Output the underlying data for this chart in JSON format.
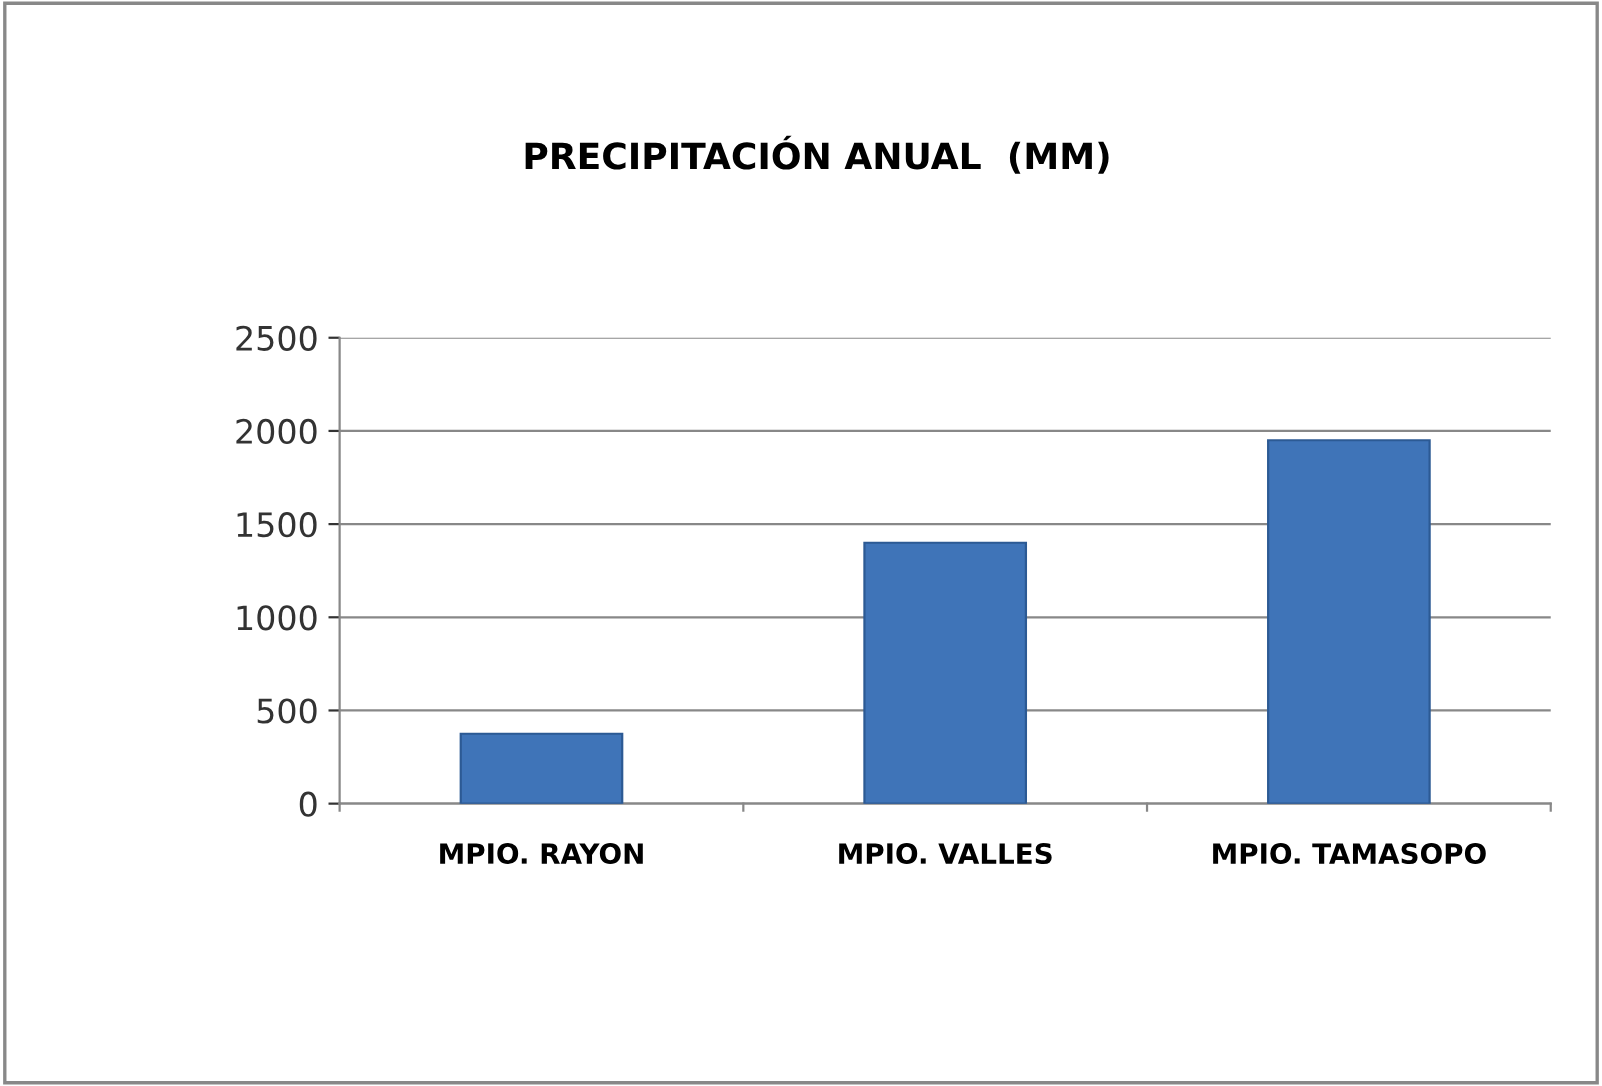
{
  "chart_data": {
    "type": "bar",
    "title": "PRECIPITACIÓN ANUAL  (MM)",
    "categories": [
      "MPIO. RAYON",
      "MPIO. VALLES",
      "MPIO. TAMASOPO"
    ],
    "values": [
      375,
      1400,
      1950
    ],
    "color": "#3f74b8",
    "ylim": [
      0,
      2500
    ],
    "yticks": [
      0,
      500,
      1000,
      1500,
      2000,
      2500
    ],
    "grid": "y",
    "legend": false
  }
}
